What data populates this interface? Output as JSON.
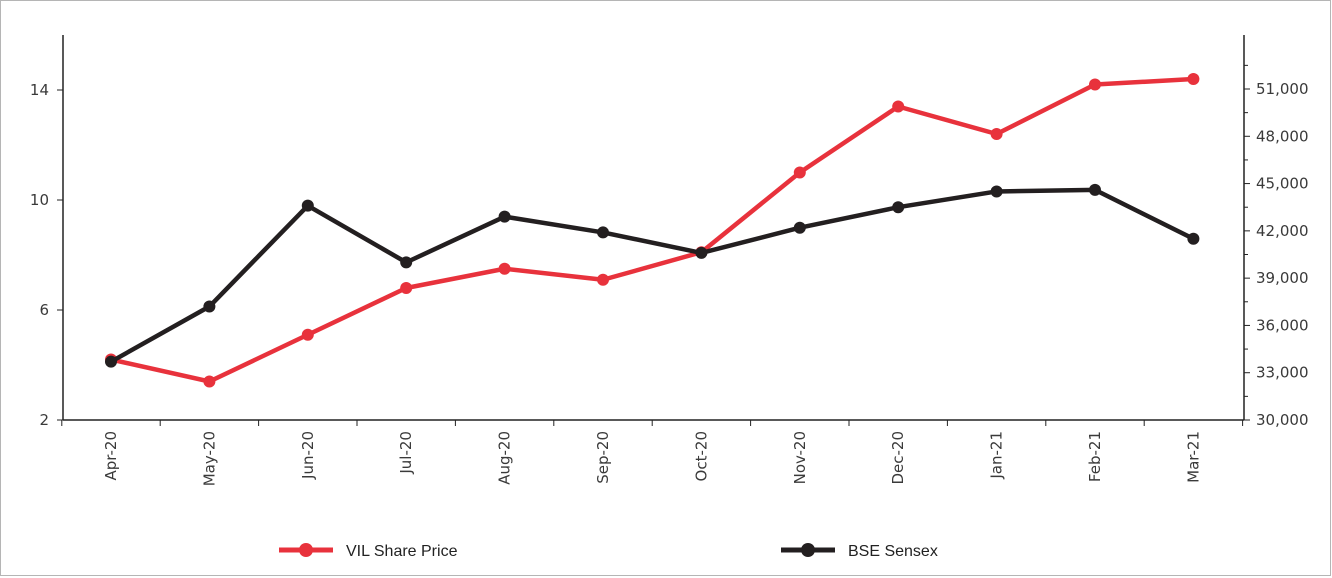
{
  "chart_data": {
    "type": "line",
    "title": "",
    "categories": [
      "Apr-20",
      "May-20",
      "Jun-20",
      "Jul-20",
      "Aug-20",
      "Sep-20",
      "Oct-20",
      "Nov-20",
      "Dec-20",
      "Jan-21",
      "Feb-21",
      "Mar-21"
    ],
    "series": [
      {
        "name": "VIL Share Price",
        "axis": "left",
        "color": "#e8323c",
        "values": [
          4.2,
          3.4,
          5.1,
          6.8,
          7.5,
          7.1,
          8.1,
          11.0,
          13.4,
          12.4,
          14.2,
          14.4
        ]
      },
      {
        "name": "BSE Sensex",
        "axis": "right",
        "color": "#231f20",
        "values": [
          33700,
          37200,
          43600,
          40000,
          42900,
          41900,
          40600,
          42200,
          43500,
          44500,
          44600,
          41500
        ]
      }
    ],
    "y_left": {
      "min": 2,
      "max": 16,
      "ticks": [
        "2",
        "6",
        "10",
        "14"
      ],
      "tick_values": [
        2,
        6,
        10,
        14
      ]
    },
    "y_right": {
      "min": 30000,
      "max": 52500,
      "ticks": [
        "30,000",
        "33,000",
        "36,000",
        "39,000",
        "42,000",
        "45,000",
        "48,000",
        "51,000"
      ],
      "tick_values": [
        30000,
        33000,
        36000,
        39000,
        42000,
        45000,
        48000,
        51000
      ]
    },
    "legend_position": "bottom",
    "grid": false
  }
}
